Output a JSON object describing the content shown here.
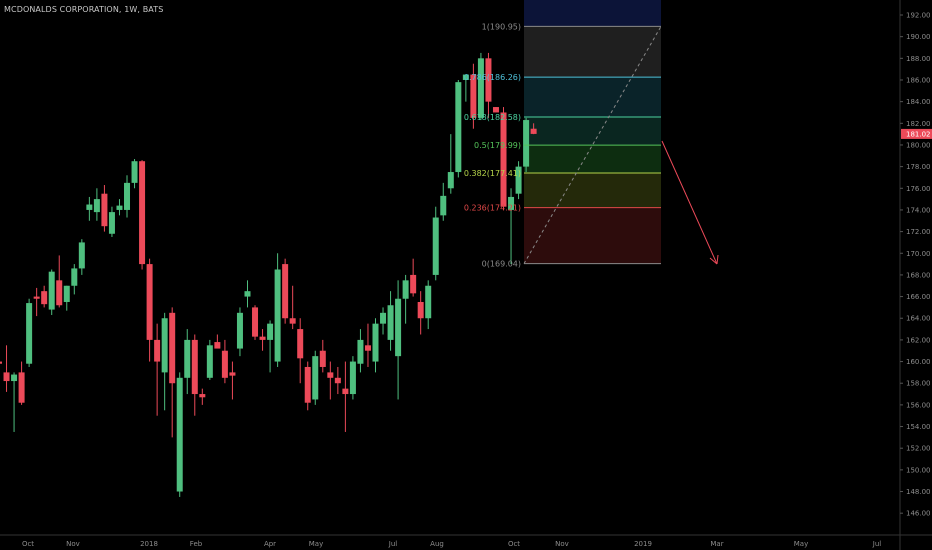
{
  "header": {
    "title": "MCDONALDS CORPORATION, 1W, BATS"
  },
  "chart_data": {
    "type": "candlestick",
    "ylim": [
      145,
      193
    ],
    "y_ticks": [
      "192.00",
      "190.00",
      "188.00",
      "186.00",
      "184.00",
      "182.00",
      "180.00",
      "178.00",
      "176.00",
      "174.00",
      "172.00",
      "170.00",
      "168.00",
      "166.00",
      "164.00",
      "162.00",
      "160.00",
      "158.00",
      "156.00",
      "154.00",
      "152.00",
      "150.00",
      "148.00",
      "146.00"
    ],
    "x_ticks": [
      "Oct",
      "Nov",
      "2018",
      "Feb",
      "Apr",
      "May",
      "Jul",
      "Aug",
      "Oct",
      "Nov",
      "2019",
      "Mar",
      "May",
      "Jul"
    ],
    "last_price_label": "181.02",
    "fib_levels": [
      {
        "level": "1",
        "price": "190.95",
        "label": "1(190.95)",
        "color": "#8a8a8a"
      },
      {
        "level": "0.786",
        "price": "186.26",
        "label": "0.786(186.26)",
        "color": "#4fc1d9"
      },
      {
        "level": "0.618",
        "price": "182.58",
        "label": "0.618(182.58)",
        "color": "#4cd3a0"
      },
      {
        "level": "0.5",
        "price": "179.99",
        "label": "0.5(179.99)",
        "color": "#55c45a"
      },
      {
        "level": "0.382",
        "price": "177.41",
        "label": "0.382(177.41)",
        "color": "#b5d44a"
      },
      {
        "level": "0.236",
        "price": "174.21",
        "label": "0.236(174.21)",
        "color": "#e04848"
      },
      {
        "level": "0",
        "price": "169.04",
        "label": "0(169.04)",
        "color": "#8a8a8a"
      }
    ],
    "candles": [
      [
        160.0,
        160.5,
        159.0,
        159.8
      ],
      [
        159.0,
        161.5,
        157.2,
        158.2
      ],
      [
        158.2,
        159.0,
        153.5,
        158.8
      ],
      [
        159.0,
        160.0,
        156.0,
        156.2
      ],
      [
        159.8,
        165.8,
        159.5,
        165.4
      ],
      [
        166.0,
        166.8,
        164.2,
        165.8
      ],
      [
        166.5,
        167.0,
        165.0,
        165.3
      ],
      [
        164.8,
        168.5,
        164.3,
        168.3
      ],
      [
        167.5,
        169.8,
        165.0,
        165.2
      ],
      [
        165.5,
        167.0,
        164.7,
        167.0
      ],
      [
        167.0,
        169.0,
        166.2,
        168.6
      ],
      [
        168.6,
        171.3,
        168.0,
        171.0
      ],
      [
        174.0,
        175.2,
        173.0,
        174.5
      ],
      [
        173.8,
        176.0,
        173.0,
        175.0
      ],
      [
        175.5,
        176.3,
        172.0,
        172.5
      ],
      [
        171.8,
        174.3,
        171.5,
        173.8
      ],
      [
        174.0,
        175.0,
        173.5,
        174.4
      ],
      [
        174.0,
        177.2,
        173.3,
        176.5
      ],
      [
        176.5,
        178.7,
        176.0,
        178.5
      ],
      [
        178.5,
        178.6,
        168.5,
        169.0
      ],
      [
        169.0,
        169.5,
        160.0,
        162.0
      ],
      [
        162.0,
        163.5,
        155.0,
        160.0
      ],
      [
        159.0,
        164.5,
        155.5,
        164.0
      ],
      [
        164.5,
        165.0,
        153.0,
        158.0
      ],
      [
        148.0,
        159.0,
        147.5,
        158.5
      ],
      [
        158.5,
        163.0,
        157.0,
        162.0
      ],
      [
        162.0,
        162.5,
        155.0,
        157.0
      ],
      [
        157.0,
        157.5,
        156.0,
        156.7
      ],
      [
        158.5,
        162.0,
        158.3,
        161.5
      ],
      [
        161.8,
        162.5,
        161.5,
        161.2
      ],
      [
        161.0,
        162.0,
        158.0,
        158.5
      ],
      [
        159.0,
        160.0,
        156.5,
        158.7
      ],
      [
        161.2,
        165.0,
        160.5,
        164.5
      ],
      [
        166.0,
        167.5,
        165.0,
        166.5
      ],
      [
        165.0,
        165.2,
        162.0,
        162.3
      ],
      [
        162.3,
        163.0,
        161.0,
        162.0
      ],
      [
        162.0,
        163.8,
        159.0,
        163.5
      ],
      [
        160.0,
        170.0,
        159.5,
        168.5
      ],
      [
        169.0,
        169.5,
        163.5,
        164.0
      ],
      [
        164.0,
        167.0,
        163.0,
        163.5
      ],
      [
        163.0,
        164.0,
        158.0,
        160.3
      ],
      [
        159.5,
        160.0,
        155.5,
        156.2
      ],
      [
        156.5,
        161.0,
        156.0,
        160.5
      ],
      [
        161.0,
        162.0,
        159.0,
        159.5
      ],
      [
        159.0,
        160.0,
        156.5,
        158.5
      ],
      [
        158.5,
        159.5,
        157.0,
        158.0
      ],
      [
        157.5,
        160.0,
        153.5,
        157.0
      ],
      [
        157.0,
        160.5,
        156.5,
        160.0
      ],
      [
        159.8,
        163.0,
        159.0,
        162.0
      ],
      [
        161.5,
        163.5,
        159.5,
        161.0
      ],
      [
        160.0,
        164.0,
        159.0,
        163.5
      ],
      [
        163.5,
        165.0,
        162.5,
        164.5
      ],
      [
        162.0,
        166.5,
        161.0,
        165.2
      ],
      [
        160.5,
        167.5,
        156.5,
        165.8
      ],
      [
        165.8,
        168.0,
        163.5,
        167.5
      ],
      [
        168.0,
        169.5,
        166.0,
        166.3
      ],
      [
        165.5,
        166.5,
        162.5,
        164.0
      ],
      [
        164.0,
        167.5,
        163.0,
        167.0
      ],
      [
        168.0,
        174.3,
        167.5,
        173.3
      ],
      [
        173.5,
        176.5,
        173.0,
        175.3
      ],
      [
        176.0,
        181.0,
        175.5,
        177.5
      ],
      [
        177.5,
        186.0,
        177.0,
        185.8
      ],
      [
        186.0,
        186.3,
        184.0,
        186.5
      ],
      [
        186.5,
        187.5,
        181.5,
        182.5
      ],
      [
        182.5,
        188.5,
        182.3,
        188.0
      ],
      [
        188.0,
        188.5,
        182.5,
        184.0
      ],
      [
        183.5,
        183.5,
        183.0,
        183.0
      ],
      [
        183.0,
        183.5,
        174.0,
        174.3
      ],
      [
        174.0,
        176.0,
        169.0,
        175.2
      ],
      [
        175.5,
        178.5,
        175.0,
        178.0
      ],
      [
        178.0,
        182.5,
        177.5,
        182.3
      ],
      [
        181.5,
        182.0,
        181.0,
        181.02
      ]
    ]
  }
}
